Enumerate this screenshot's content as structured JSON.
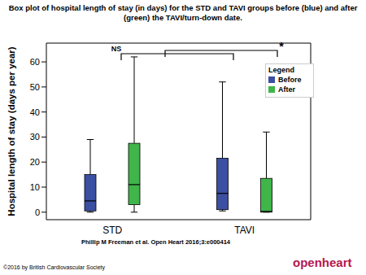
{
  "chart_data": {
    "type": "box",
    "title": "Box plot of hospital length of stay (in days) for the STD and TAVI groups before (blue) and after (green) the TAVI/turn-down date.",
    "y_label": "Hospital length of stay (days per year)",
    "categories": [
      "STD",
      "TAVI"
    ],
    "series": [
      {
        "name": "Before",
        "color": "#3b4fa3",
        "min": [
          0,
          0.5
        ],
        "q1": [
          0.5,
          1
        ],
        "median": [
          4.5,
          7.5
        ],
        "q3": [
          15,
          21.5
        ],
        "max": [
          29,
          52
        ]
      },
      {
        "name": "After",
        "color": "#3fb54a",
        "min": [
          0,
          0
        ],
        "q1": [
          3,
          0
        ],
        "median": [
          11,
          0.3
        ],
        "q3": [
          27.5,
          13.5
        ],
        "max": [
          62,
          32
        ]
      }
    ],
    "ylim": [
      -3,
      67.5
    ],
    "yticks": [
      0,
      10,
      20,
      30,
      40,
      50,
      60
    ],
    "legend": "upper right",
    "legend_title": "Legend",
    "annotations": [
      "NS",
      "*"
    ],
    "source": "Phillip M Freeman et al. Open Heart 2016;3:e000414",
    "copyright": "©2016 by British Cardiovascular Society",
    "logo": "openheart"
  }
}
